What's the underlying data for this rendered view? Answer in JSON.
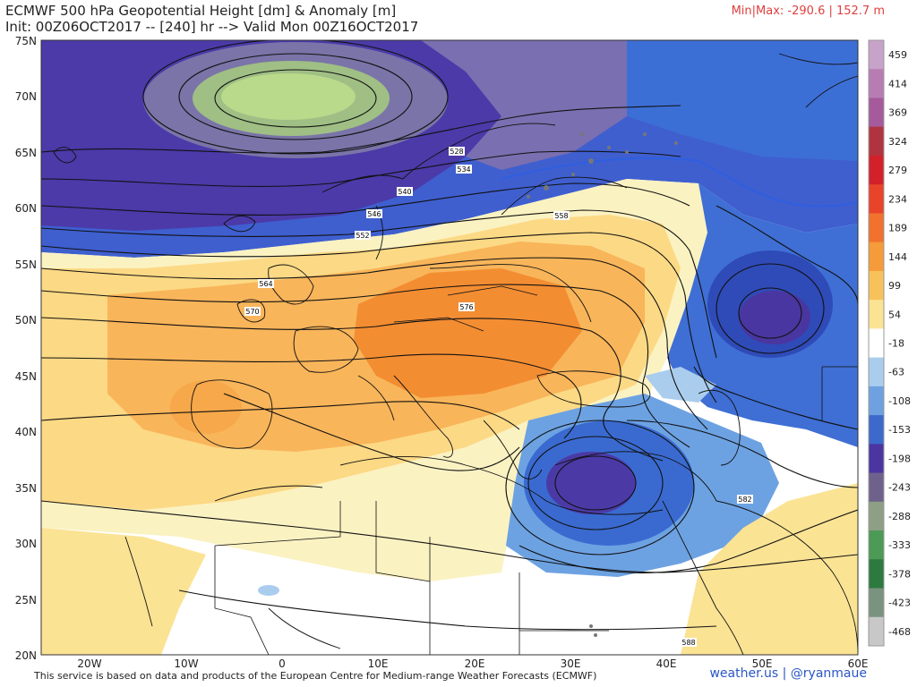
{
  "header": {
    "title_line1": "ECMWF 500 hPa Geopotential Height [dm] & Anomaly [m]",
    "title_line2": "Init: 00Z06OCT2017 -- [240] hr --> Valid Mon 00Z16OCT2017",
    "minmax": "Min|Max: -290.6 | 152.7 m"
  },
  "axes": {
    "lat_labels": [
      "75N",
      "70N",
      "65N",
      "60N",
      "55N",
      "50N",
      "45N",
      "40N",
      "35N",
      "30N",
      "25N",
      "20N"
    ],
    "lon_labels": [
      "20W",
      "10W",
      "0",
      "10E",
      "20E",
      "30E",
      "40E",
      "50E",
      "60E"
    ]
  },
  "colorbar": {
    "labels": [
      "459",
      "414",
      "369",
      "324",
      "279",
      "234",
      "189",
      "144",
      "99",
      "54",
      "-18",
      "-63",
      "-108",
      "-153",
      "-198",
      "-243",
      "-288",
      "-333",
      "-378",
      "-423",
      "-468"
    ],
    "colors": [
      "#c8a3c9",
      "#b77db3",
      "#a55a9b",
      "#b0343f",
      "#d2212a",
      "#e8442a",
      "#f0722e",
      "#f59b3a",
      "#f8c25a",
      "#fbe394",
      "#ffffff",
      "#aacdee",
      "#6ea1e0",
      "#3c69cc",
      "#4b35a0",
      "#6e628c",
      "#8d9f85",
      "#4c9a56",
      "#2c7a3f",
      "#7a9280",
      "#c8c8c8"
    ]
  },
  "contour_labels": [
    "528",
    "534",
    "540",
    "546",
    "552",
    "558",
    "564",
    "570",
    "576",
    "582",
    "588"
  ],
  "footer": {
    "attribution": "This service is based on data and products of the European Centre for Medium-range Weather Forecasts (ECMWF)",
    "brand": "weather.us | @ryanmaue"
  }
}
